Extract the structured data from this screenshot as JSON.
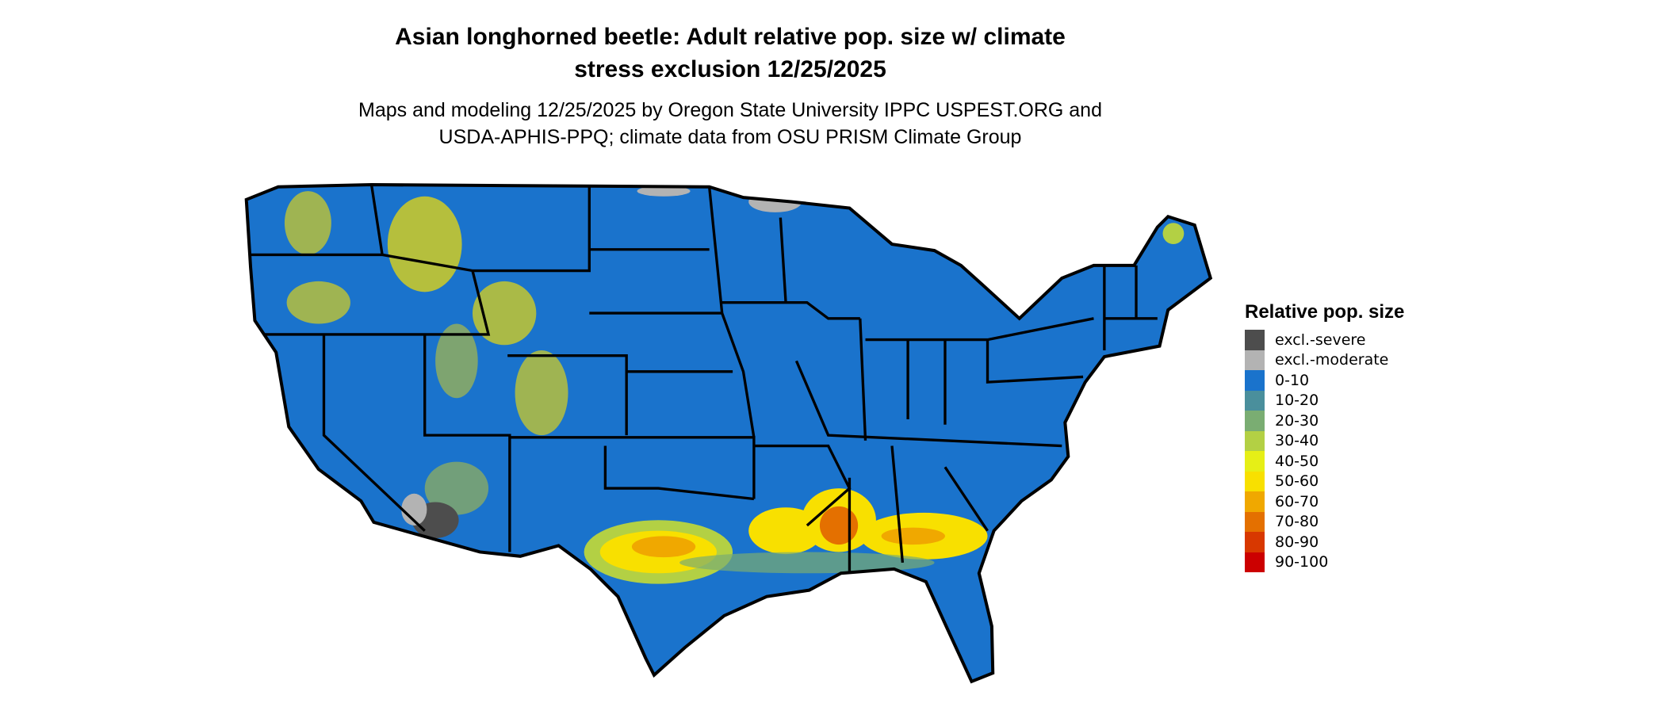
{
  "header": {
    "title_line1": "Asian longhorned beetle: Adult relative pop. size w/ climate",
    "title_line2": "stress exclusion 12/25/2025",
    "subtitle_line1": "Maps and modeling 12/25/2025 by Oregon State University IPPC USPEST.ORG and",
    "subtitle_line2": "USDA-APHIS-PPQ; climate data from OSU PRISM Climate Group"
  },
  "map": {
    "region": "Contiguous United States",
    "base_color": "#1a73cc",
    "border_color": "#000000"
  },
  "legend": {
    "title": "Relative pop. size",
    "items": [
      {
        "label": "excl.-severe",
        "color": "#4d4d4d"
      },
      {
        "label": "excl.-moderate",
        "color": "#b3b3b3"
      },
      {
        "label": "0-10",
        "color": "#1a73cc"
      },
      {
        "label": "10-20",
        "color": "#4a8f9c"
      },
      {
        "label": "20-30",
        "color": "#7aad72"
      },
      {
        "label": "30-40",
        "color": "#b3d044"
      },
      {
        "label": "40-50",
        "color": "#e6ef16"
      },
      {
        "label": "50-60",
        "color": "#f8e000"
      },
      {
        "label": "60-70",
        "color": "#f0a800"
      },
      {
        "label": "70-80",
        "color": "#e47000"
      },
      {
        "label": "80-90",
        "color": "#d83800"
      },
      {
        "label": "90-100",
        "color": "#cc0000"
      }
    ]
  }
}
